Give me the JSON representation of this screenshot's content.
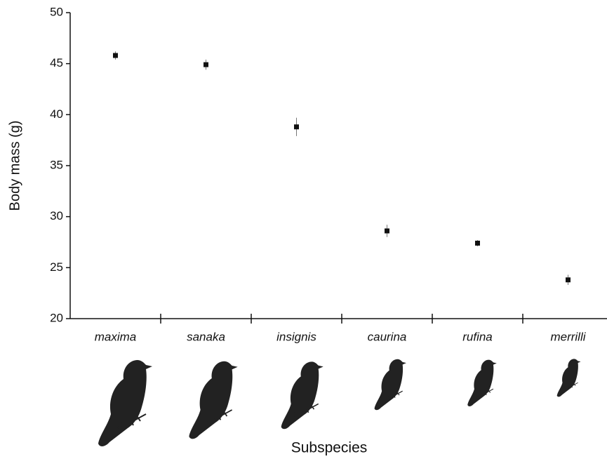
{
  "chart_data": {
    "type": "errorpoint",
    "y_label": "Body mass (g)",
    "x_label": "Subspecies",
    "categories": [
      "maxima",
      "sanaka",
      "insignis",
      "caurina",
      "rufina",
      "merrilli"
    ],
    "values": [
      45.8,
      44.9,
      38.8,
      28.6,
      27.4,
      23.8
    ],
    "errors": [
      0.4,
      0.5,
      0.9,
      0.6,
      0.3,
      0.5
    ],
    "color": "#111111",
    "ylim": [
      20,
      50
    ],
    "yticks": [
      20,
      25,
      30,
      35,
      40,
      45,
      50
    ]
  }
}
